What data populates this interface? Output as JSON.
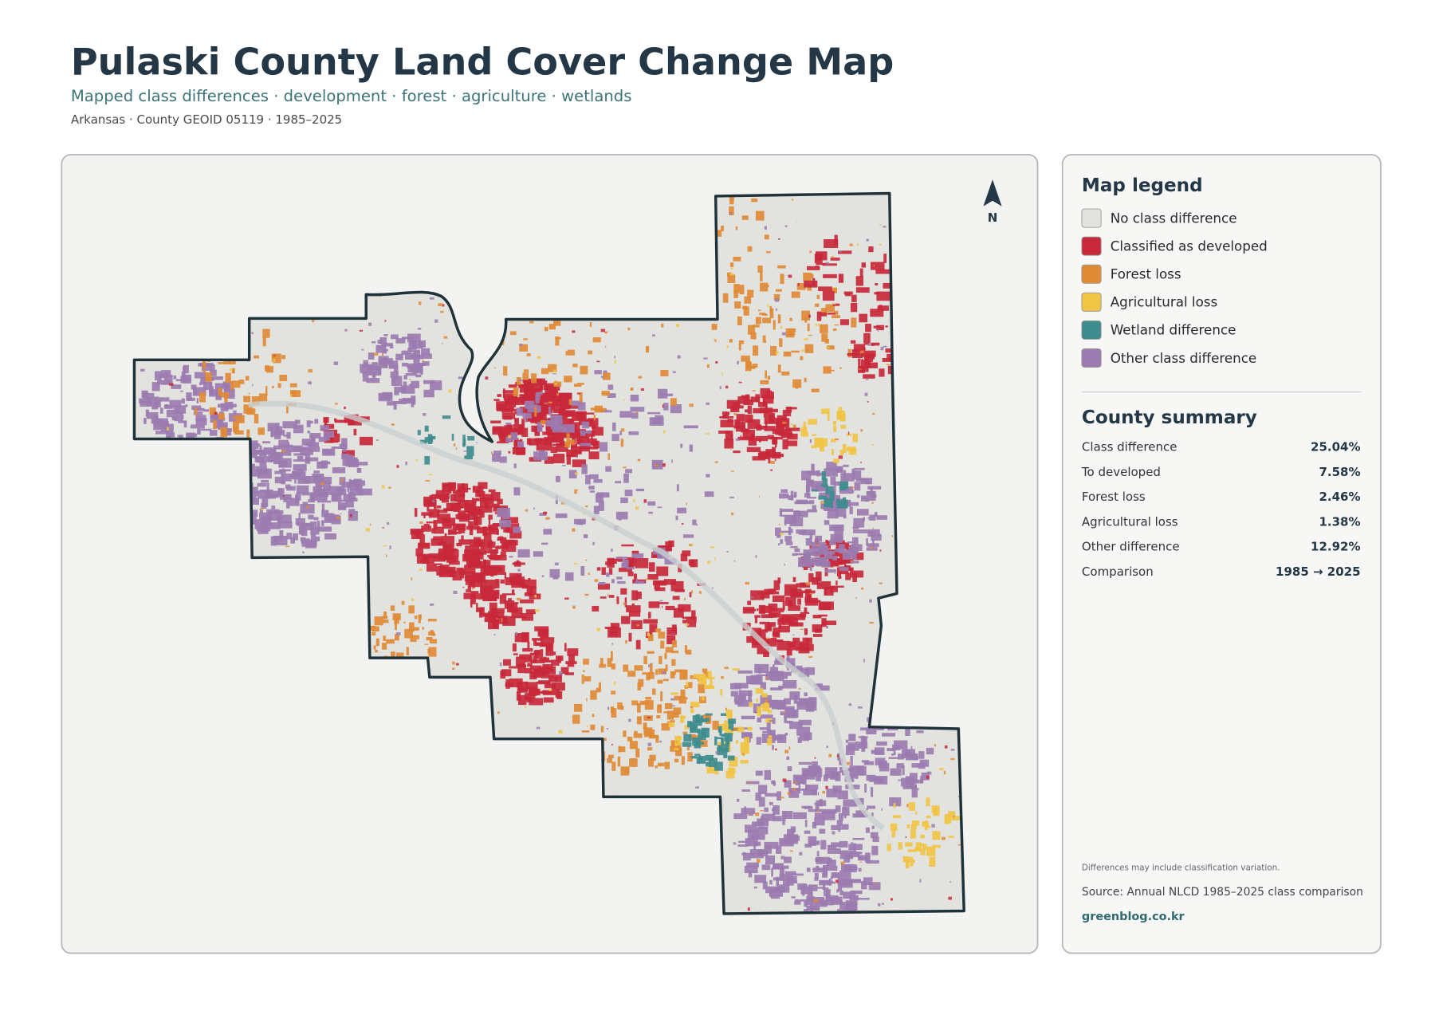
{
  "header": {
    "title": "Pulaski County Land Cover Change Map",
    "subtitle": "Mapped class differences · development · forest · agriculture · wetlands",
    "meta": "Arkansas · County GEOID 05119 · 1985–2025"
  },
  "map": {
    "north_label": "N"
  },
  "legend": {
    "title": "Map legend",
    "items": [
      {
        "label": "No class difference",
        "color": "#e2e2df"
      },
      {
        "label": "Classified as developed",
        "color": "#c8283a"
      },
      {
        "label": "Forest loss",
        "color": "#e08a35"
      },
      {
        "label": "Agricultural loss",
        "color": "#f0c445"
      },
      {
        "label": "Wetland difference",
        "color": "#3f8c8f"
      },
      {
        "label": "Other class difference",
        "color": "#9b7bb0"
      }
    ]
  },
  "summary": {
    "title": "County summary",
    "rows": [
      [
        "Class difference",
        "25.04%"
      ],
      [
        "To developed",
        "7.58%"
      ],
      [
        "Forest loss",
        "2.46%"
      ],
      [
        "Agricultural loss",
        "1.38%"
      ],
      [
        "Other difference",
        "12.92%"
      ],
      [
        "Comparison",
        "1985 → 2025"
      ]
    ]
  },
  "footer": {
    "note": "Differences may include classification variation.",
    "source": "Source: Annual NLCD 1985–2025 class comparison",
    "link": "greenblog.co.kr"
  }
}
